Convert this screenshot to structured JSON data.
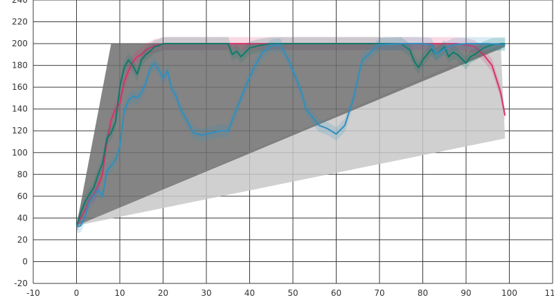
{
  "chart_data": {
    "type": "line",
    "xlim": [
      -10,
      110
    ],
    "ylim": [
      -20,
      240
    ],
    "x_ticks": [
      -10,
      0,
      10,
      20,
      30,
      40,
      50,
      60,
      70,
      80,
      90,
      100,
      110
    ],
    "y_ticks": [
      -20,
      0,
      20,
      40,
      60,
      80,
      100,
      120,
      140,
      160,
      180,
      200,
      220,
      240
    ],
    "grid": true,
    "colors": {
      "pink": "#d6336c",
      "green": "#0f7a6a",
      "blue": "#2f8fbf",
      "fan_light": "#c8c8c8",
      "fan_dark": "#6e6e6e"
    },
    "fan_regions": [
      {
        "points": [
          [
            0,
            33
          ],
          [
            98,
            199
          ],
          [
            99,
            113
          ]
        ],
        "fill": "#c8c8c8"
      },
      {
        "points": [
          [
            0,
            33
          ],
          [
            99,
            197
          ],
          [
            99,
            200
          ],
          [
            8,
            200
          ]
        ],
        "fill": "#6e6e6e"
      }
    ],
    "series": [
      {
        "color": "#d6336c",
        "x": [
          0,
          1,
          2,
          3,
          4,
          5,
          6,
          7,
          8,
          9,
          10,
          11,
          12,
          13,
          14,
          15,
          16,
          17,
          18,
          19,
          20,
          22,
          25,
          30,
          40,
          50,
          60,
          70,
          80,
          85,
          88,
          90,
          92,
          94,
          96,
          98,
          99
        ],
        "y": [
          33,
          40,
          47,
          57,
          61,
          70,
          80,
          110,
          130,
          140,
          145,
          165,
          175,
          183,
          188,
          190,
          194,
          196,
          198,
          199,
          200,
          200,
          200,
          200,
          200,
          200,
          200,
          200,
          200,
          200,
          200,
          199,
          197,
          190,
          180,
          155,
          134
        ]
      },
      {
        "color": "#0f7a6a",
        "x": [
          0,
          1,
          2,
          3,
          4,
          5,
          6,
          7,
          8,
          9,
          10,
          11,
          12,
          13,
          14,
          15,
          16,
          17,
          18,
          19,
          20,
          22,
          25,
          30,
          35,
          36,
          37,
          38,
          39,
          40,
          42,
          45,
          50,
          55,
          60,
          65,
          68,
          70,
          73,
          75,
          77,
          78,
          79,
          80,
          82,
          83,
          84,
          85,
          86,
          87,
          88,
          89,
          90,
          91,
          92,
          93,
          94,
          96,
          98,
          99
        ],
        "y": [
          33,
          45,
          55,
          62,
          68,
          80,
          90,
          113,
          118,
          128,
          160,
          178,
          185,
          180,
          172,
          185,
          190,
          193,
          197,
          198,
          200,
          200,
          200,
          200,
          200,
          190,
          193,
          188,
          192,
          196,
          198,
          200,
          200,
          200,
          200,
          200,
          200,
          200,
          200,
          200,
          194,
          184,
          178,
          185,
          195,
          190,
          193,
          197,
          188,
          192,
          190,
          186,
          182,
          188,
          190,
          193,
          196,
          199,
          200,
          200
        ]
      },
      {
        "color": "#2f8fbf",
        "x": [
          0,
          1,
          2,
          3,
          4,
          5,
          6,
          7,
          8,
          9,
          10,
          11,
          12,
          13,
          14,
          15,
          16,
          17,
          18,
          19,
          20,
          21,
          22,
          23,
          24,
          25,
          27,
          29,
          31,
          33,
          35,
          37,
          39,
          41,
          43,
          45,
          47,
          49,
          51,
          52,
          53,
          54,
          56,
          58,
          60,
          62,
          64,
          66,
          70,
          75,
          80,
          82,
          83,
          85,
          87,
          90,
          95,
          99
        ],
        "y": [
          32,
          33,
          42,
          55,
          60,
          66,
          60,
          83,
          88,
          93,
          105,
          138,
          148,
          152,
          150,
          155,
          164,
          177,
          182,
          176,
          168,
          175,
          158,
          152,
          140,
          133,
          118,
          116,
          118,
          120,
          120,
          140,
          160,
          178,
          192,
          198,
          199,
          185,
          165,
          155,
          140,
          135,
          125,
          122,
          117,
          125,
          150,
          185,
          199,
          200,
          200,
          199,
          190,
          195,
          199,
          200,
          200,
          199
        ]
      }
    ]
  }
}
